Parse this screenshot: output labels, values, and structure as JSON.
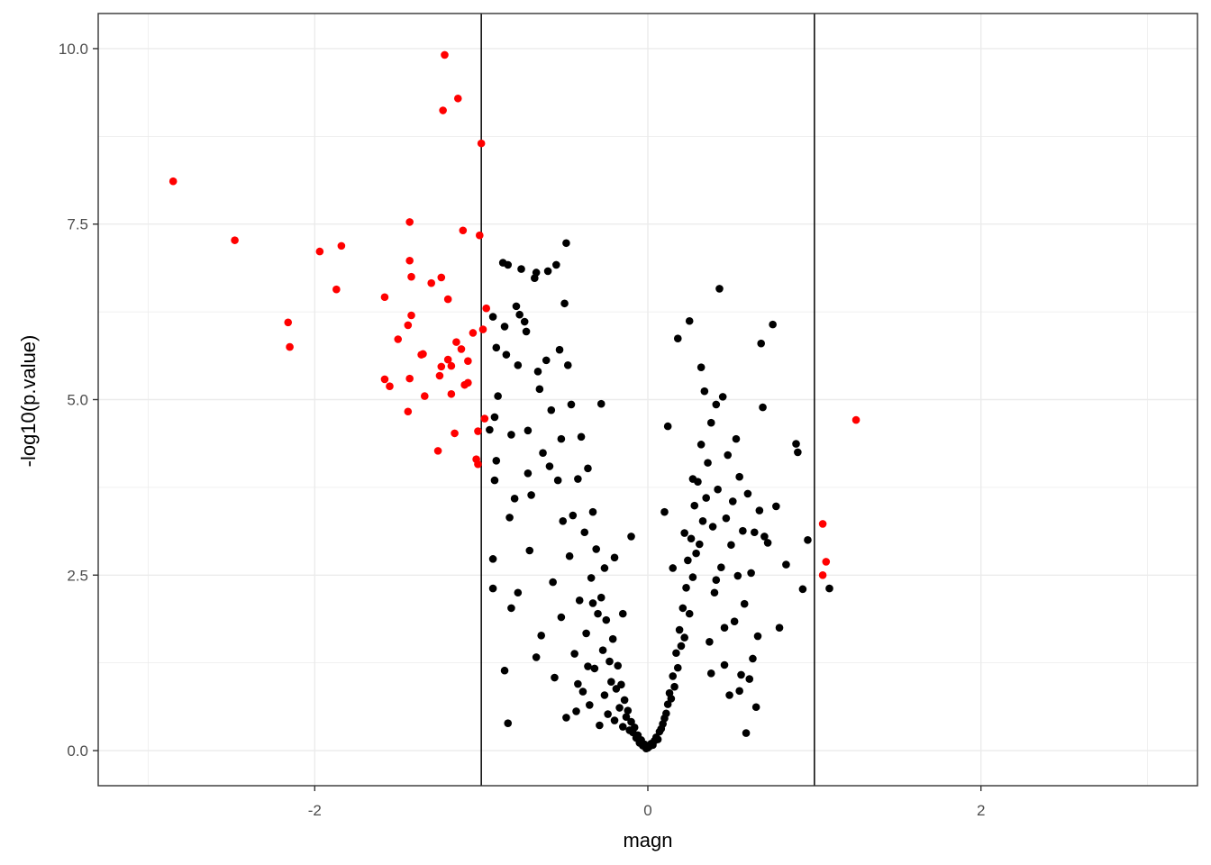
{
  "chart_data": {
    "type": "scatter",
    "title": "",
    "xlabel": "magn",
    "ylabel": "-log10(p.value)",
    "xlim": [
      -3.3,
      3.3
    ],
    "ylim": [
      -0.5,
      10.5
    ],
    "x_ticks": [
      -2,
      0,
      2
    ],
    "x_tick_labels": [
      "-2",
      "0",
      "2"
    ],
    "y_ticks": [
      0,
      2.5,
      5,
      7.5,
      10
    ],
    "y_tick_labels": [
      "0.0",
      "2.5",
      "5.0",
      "7.5",
      "10.0"
    ],
    "grid": true,
    "legend": "none",
    "vlines": [
      -1,
      1
    ],
    "colors": {
      "significant": "#ff0000",
      "other": "#000000",
      "grid": "#ebebeb",
      "panel_border": "#333333"
    },
    "series": [
      {
        "color": "#ff0000",
        "points": [
          [
            -2.85,
            8.11
          ],
          [
            -2.48,
            7.27
          ],
          [
            -2.16,
            6.1
          ],
          [
            -2.15,
            5.75
          ],
          [
            -1.97,
            7.11
          ],
          [
            -1.84,
            7.19
          ],
          [
            -1.87,
            6.57
          ],
          [
            -1.58,
            6.46
          ],
          [
            -1.58,
            5.29
          ],
          [
            -1.55,
            5.19
          ],
          [
            -1.5,
            5.86
          ],
          [
            -1.43,
            7.53
          ],
          [
            -1.43,
            6.98
          ],
          [
            -1.42,
            6.75
          ],
          [
            -1.42,
            6.2
          ],
          [
            -1.44,
            6.06
          ],
          [
            -1.43,
            5.3
          ],
          [
            -1.44,
            4.83
          ],
          [
            -1.35,
            5.65
          ],
          [
            -1.36,
            5.64
          ],
          [
            -1.34,
            5.05
          ],
          [
            -1.3,
            6.66
          ],
          [
            -1.26,
            4.27
          ],
          [
            -1.25,
            5.34
          ],
          [
            -1.24,
            5.47
          ],
          [
            -1.24,
            6.74
          ],
          [
            -1.22,
            9.91
          ],
          [
            -1.23,
            9.12
          ],
          [
            -1.2,
            6.43
          ],
          [
            -1.2,
            5.57
          ],
          [
            -1.18,
            5.48
          ],
          [
            -1.18,
            5.08
          ],
          [
            -1.16,
            4.52
          ],
          [
            -1.15,
            5.82
          ],
          [
            -1.14,
            9.29
          ],
          [
            -1.12,
            5.72
          ],
          [
            -1.11,
            7.41
          ],
          [
            -1.1,
            5.21
          ],
          [
            -1.08,
            5.24
          ],
          [
            -1.08,
            5.55
          ],
          [
            -1.05,
            5.95
          ],
          [
            -1.03,
            4.15
          ],
          [
            -1.02,
            4.08
          ],
          [
            -1.02,
            4.55
          ],
          [
            -1.01,
            7.34
          ],
          [
            -1.0,
            8.65
          ],
          [
            -0.99,
            6.0
          ],
          [
            -0.98,
            4.73
          ],
          [
            -0.97,
            6.3
          ],
          [
            1.05,
            3.23
          ],
          [
            1.05,
            2.5
          ],
          [
            1.07,
            2.69
          ],
          [
            1.25,
            4.71
          ]
        ]
      },
      {
        "color": "#000000",
        "points": [
          [
            -0.92,
            4.75
          ],
          [
            -0.93,
            6.18
          ],
          [
            -0.91,
            5.74
          ],
          [
            -0.95,
            4.57
          ],
          [
            -0.92,
            3.85
          ],
          [
            -0.93,
            2.73
          ],
          [
            -0.93,
            2.31
          ],
          [
            -0.91,
            4.13
          ],
          [
            -0.9,
            5.05
          ],
          [
            -0.87,
            6.95
          ],
          [
            -0.86,
            6.04
          ],
          [
            -0.85,
            5.64
          ],
          [
            -0.84,
            6.92
          ],
          [
            -0.83,
            3.32
          ],
          [
            -0.86,
            1.14
          ],
          [
            -0.84,
            0.39
          ],
          [
            -0.82,
            2.03
          ],
          [
            -0.82,
            4.5
          ],
          [
            -0.8,
            3.59
          ],
          [
            -0.79,
            6.33
          ],
          [
            -0.78,
            5.49
          ],
          [
            -0.77,
            6.21
          ],
          [
            -0.76,
            6.86
          ],
          [
            -0.74,
            6.11
          ],
          [
            -0.73,
            5.97
          ],
          [
            -0.72,
            4.56
          ],
          [
            -0.71,
            2.85
          ],
          [
            -0.7,
            3.64
          ],
          [
            -0.68,
            6.73
          ],
          [
            -0.67,
            1.33
          ],
          [
            -0.67,
            6.81
          ],
          [
            -0.66,
            5.4
          ],
          [
            -0.64,
            1.64
          ],
          [
            -0.63,
            4.24
          ],
          [
            -0.61,
            5.56
          ],
          [
            -0.6,
            6.83
          ],
          [
            -0.59,
            4.05
          ],
          [
            -0.57,
            2.4
          ],
          [
            -0.56,
            1.04
          ],
          [
            -0.55,
            6.92
          ],
          [
            -0.54,
            3.85
          ],
          [
            -0.53,
            5.71
          ],
          [
            -0.52,
            4.44
          ],
          [
            -0.51,
            3.27
          ],
          [
            -0.5,
            6.37
          ],
          [
            -0.49,
            0.47
          ],
          [
            -0.48,
            5.49
          ],
          [
            -0.47,
            2.77
          ],
          [
            -0.46,
            4.93
          ],
          [
            -0.49,
            7.23
          ],
          [
            -0.44,
            1.38
          ],
          [
            -0.43,
            0.56
          ],
          [
            -0.42,
            3.87
          ],
          [
            -0.41,
            2.14
          ],
          [
            -0.4,
            4.47
          ],
          [
            -0.39,
            0.84
          ],
          [
            -0.38,
            3.11
          ],
          [
            -0.37,
            1.67
          ],
          [
            -0.36,
            4.02
          ],
          [
            -0.35,
            0.65
          ],
          [
            -0.34,
            2.46
          ],
          [
            -0.33,
            3.4
          ],
          [
            -0.32,
            1.17
          ],
          [
            -0.31,
            2.87
          ],
          [
            -0.3,
            1.95
          ],
          [
            -0.29,
            0.36
          ],
          [
            -0.28,
            2.18
          ],
          [
            -0.27,
            1.43
          ],
          [
            -0.26,
            0.79
          ],
          [
            -0.25,
            1.86
          ],
          [
            -0.24,
            0.52
          ],
          [
            -0.23,
            1.27
          ],
          [
            -0.22,
            0.98
          ],
          [
            -0.21,
            1.59
          ],
          [
            -0.2,
            0.43
          ],
          [
            -0.19,
            0.88
          ],
          [
            -0.18,
            1.21
          ],
          [
            -0.17,
            0.61
          ],
          [
            -0.16,
            0.94
          ],
          [
            -0.15,
            0.34
          ],
          [
            -0.14,
            0.72
          ],
          [
            -0.13,
            0.48
          ],
          [
            -0.12,
            0.57
          ],
          [
            -0.11,
            0.29
          ],
          [
            -0.1,
            0.41
          ],
          [
            -0.09,
            0.26
          ],
          [
            -0.08,
            0.33
          ],
          [
            -0.07,
            0.18
          ],
          [
            -0.06,
            0.22
          ],
          [
            -0.05,
            0.11
          ],
          [
            -0.04,
            0.15
          ],
          [
            -0.03,
            0.07
          ],
          [
            -0.02,
            0.09
          ],
          [
            -0.01,
            0.03
          ],
          [
            0.0,
            0.04
          ],
          [
            0.01,
            0.06
          ],
          [
            0.02,
            0.1
          ],
          [
            0.03,
            0.08
          ],
          [
            0.04,
            0.14
          ],
          [
            0.05,
            0.19
          ],
          [
            0.06,
            0.16
          ],
          [
            0.07,
            0.27
          ],
          [
            0.08,
            0.31
          ],
          [
            0.09,
            0.38
          ],
          [
            0.1,
            0.46
          ],
          [
            0.11,
            0.53
          ],
          [
            0.12,
            0.66
          ],
          [
            0.13,
            0.82
          ],
          [
            0.14,
            0.74
          ],
          [
            0.15,
            1.06
          ],
          [
            0.16,
            0.91
          ],
          [
            0.17,
            1.39
          ],
          [
            0.18,
            1.18
          ],
          [
            0.19,
            1.72
          ],
          [
            0.2,
            1.49
          ],
          [
            0.21,
            2.03
          ],
          [
            0.22,
            1.61
          ],
          [
            0.23,
            2.32
          ],
          [
            0.24,
            2.71
          ],
          [
            0.25,
            1.95
          ],
          [
            0.26,
            3.02
          ],
          [
            0.27,
            2.47
          ],
          [
            0.28,
            3.49
          ],
          [
            0.29,
            2.81
          ],
          [
            0.3,
            3.83
          ],
          [
            0.31,
            2.94
          ],
          [
            0.32,
            4.36
          ],
          [
            0.33,
            3.27
          ],
          [
            0.34,
            5.12
          ],
          [
            0.35,
            3.6
          ],
          [
            0.36,
            4.1
          ],
          [
            0.37,
            1.55
          ],
          [
            0.38,
            4.67
          ],
          [
            0.39,
            3.19
          ],
          [
            0.4,
            2.25
          ],
          [
            0.41,
            4.93
          ],
          [
            0.42,
            3.72
          ],
          [
            0.43,
            6.58
          ],
          [
            0.44,
            2.61
          ],
          [
            0.45,
            5.04
          ],
          [
            0.46,
            1.22
          ],
          [
            0.47,
            3.31
          ],
          [
            0.48,
            4.21
          ],
          [
            0.49,
            0.79
          ],
          [
            0.5,
            2.93
          ],
          [
            0.51,
            3.55
          ],
          [
            0.52,
            1.84
          ],
          [
            0.53,
            4.44
          ],
          [
            0.54,
            2.49
          ],
          [
            0.55,
            3.9
          ],
          [
            0.56,
            1.08
          ],
          [
            0.57,
            3.13
          ],
          [
            0.58,
            2.09
          ],
          [
            0.59,
            0.25
          ],
          [
            0.6,
            3.66
          ],
          [
            0.61,
            1.02
          ],
          [
            0.62,
            2.53
          ],
          [
            0.63,
            1.31
          ],
          [
            0.64,
            3.11
          ],
          [
            0.65,
            0.62
          ],
          [
            0.66,
            1.63
          ],
          [
            0.67,
            3.42
          ],
          [
            0.68,
            5.8
          ],
          [
            0.69,
            4.89
          ],
          [
            0.7,
            3.05
          ],
          [
            0.72,
            2.96
          ],
          [
            0.75,
            6.07
          ],
          [
            0.77,
            3.48
          ],
          [
            0.79,
            1.75
          ],
          [
            0.83,
            2.65
          ],
          [
            0.89,
            4.37
          ],
          [
            0.9,
            4.25
          ],
          [
            0.93,
            2.3
          ],
          [
            0.96,
            3.0
          ],
          [
            1.09,
            2.31
          ],
          [
            -0.28,
            4.94
          ],
          [
            0.12,
            4.62
          ],
          [
            0.25,
            6.12
          ],
          [
            0.18,
            5.87
          ],
          [
            0.32,
            5.46
          ],
          [
            0.27,
            3.87
          ],
          [
            0.41,
            2.43
          ],
          [
            0.1,
            3.4
          ],
          [
            -0.1,
            3.05
          ],
          [
            -0.2,
            2.75
          ],
          [
            -0.33,
            2.1
          ],
          [
            -0.45,
            3.35
          ],
          [
            -0.58,
            4.85
          ],
          [
            -0.65,
            5.15
          ],
          [
            -0.72,
            3.95
          ],
          [
            -0.78,
            2.25
          ],
          [
            -0.52,
            1.9
          ],
          [
            -0.36,
            1.2
          ],
          [
            -0.42,
            0.95
          ],
          [
            0.38,
            1.1
          ],
          [
            0.46,
            1.75
          ],
          [
            0.55,
            0.85
          ],
          [
            0.15,
            2.6
          ],
          [
            0.22,
            3.1
          ],
          [
            -0.15,
            1.95
          ],
          [
            -0.26,
            2.6
          ]
        ]
      }
    ]
  }
}
